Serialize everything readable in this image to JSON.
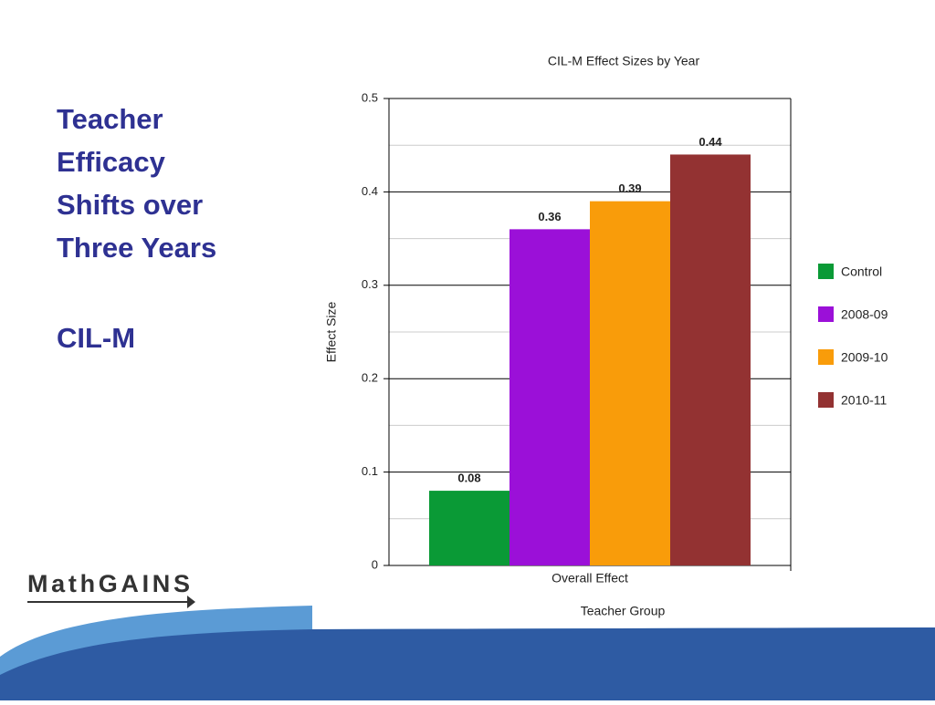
{
  "slide": {
    "title_lines": [
      "Teacher",
      "Efficacy",
      "Shifts over",
      "Three Years"
    ],
    "subtitle": "CIL-M",
    "logo": "MathGAINS"
  },
  "chart_data": {
    "type": "bar",
    "title": "CIL-M Effect Sizes by Year",
    "y_label": "Effect Size",
    "x_label": "Teacher Group",
    "categories": [
      "Overall Effect"
    ],
    "series": [
      {
        "name": "Control",
        "color": "#0a9a36",
        "values": [
          0.08
        ]
      },
      {
        "name": "2008-09",
        "color": "#9b10d8",
        "values": [
          0.36
        ]
      },
      {
        "name": "2009-10",
        "color": "#f99c0a",
        "values": [
          0.39
        ]
      },
      {
        "name": "2010-11",
        "color": "#933232",
        "values": [
          0.44
        ]
      }
    ],
    "ylim": [
      0,
      0.5
    ],
    "yticks": [
      0,
      0.1,
      0.2,
      0.3,
      0.4,
      0.5
    ],
    "minor_yticks": [
      0.05,
      0.15,
      0.25,
      0.35,
      0.45
    ],
    "grid": true,
    "legend": "right"
  }
}
